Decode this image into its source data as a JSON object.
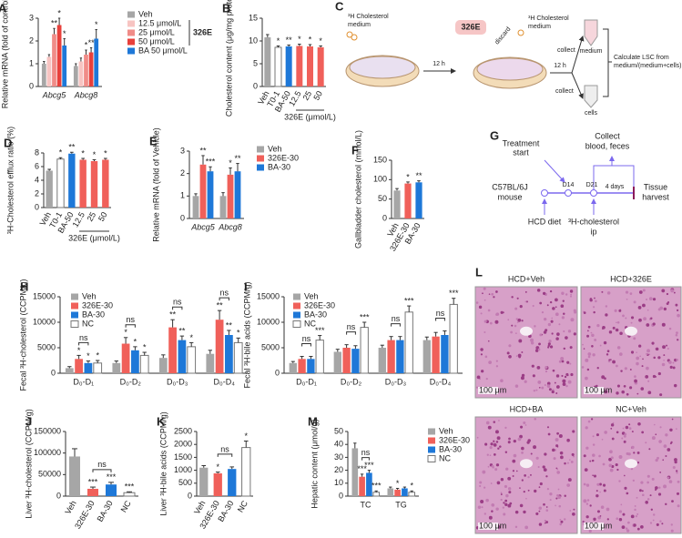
{
  "chart_data": [
    {
      "type": "bar",
      "panel": "A",
      "ylabel": "Relative mRNA (fold of control)",
      "categories": [
        "Abcg5",
        "Abcg8"
      ],
      "italic_categories": true,
      "ylim": [
        0,
        3
      ],
      "yticks": [
        0,
        1,
        2,
        3
      ],
      "legend_bracket_label": "326E",
      "series": [
        {
          "name": "Veh",
          "color": "#a6a6a6",
          "values": [
            1.0,
            0.9
          ],
          "errors": [
            0.1,
            0.1
          ],
          "significance": [
            null,
            null
          ]
        },
        {
          "name": "12.5 μmol/L",
          "color": "#f7c4c2",
          "values": [
            1.3,
            1.1
          ],
          "errors": [
            0.1,
            0.15
          ],
          "significance": [
            null,
            null
          ]
        },
        {
          "name": "25 μmol/L",
          "color": "#f08c88",
          "values": [
            2.3,
            1.4
          ],
          "errors": [
            0.25,
            0.2
          ],
          "significance": [
            "**",
            "*"
          ]
        },
        {
          "name": "50 μmol/L",
          "color": "#e8403b",
          "values": [
            2.7,
            1.5
          ],
          "errors": [
            0.3,
            0.2
          ],
          "significance": [
            "*",
            "**"
          ]
        },
        {
          "name": "BA 50 μmol/L",
          "color": "#1e78d8",
          "values": [
            1.8,
            2.1
          ],
          "errors": [
            0.3,
            0.4
          ],
          "significance": [
            "*",
            "*"
          ]
        }
      ]
    },
    {
      "type": "simple_bar",
      "panel": "B",
      "ylabel": "Cholesterol content (μg/mg protein)",
      "categories": [
        "Veh",
        "T0-1",
        "BA-50",
        "12.5",
        "25",
        "50"
      ],
      "x_group_label": "326E (μmol/L)",
      "ylim": [
        0,
        15
      ],
      "yticks": [
        0,
        5,
        10,
        15
      ],
      "colors": [
        "#a6a6a6",
        "#ffffff",
        "#1e78d8",
        "#f0605a",
        "#f0605a",
        "#f0605a"
      ],
      "values": [
        10.8,
        8.6,
        8.8,
        8.9,
        8.8,
        8.6
      ],
      "errors": [
        0.6,
        0.3,
        0.3,
        0.4,
        0.4,
        0.3
      ],
      "significance": [
        null,
        "*",
        "**",
        "*",
        "*",
        "*"
      ]
    },
    {
      "type": "simple_bar",
      "panel": "D",
      "ylabel": "³H-Cholesterol efflux ratio (%)",
      "categories": [
        "Veh",
        "T0-1",
        "BA-50",
        "12.5",
        "25",
        "50"
      ],
      "x_group_label": "326E (μmol/L)",
      "ylim": [
        0,
        8
      ],
      "yticks": [
        0,
        2,
        4,
        6,
        8
      ],
      "colors": [
        "#a6a6a6",
        "#ffffff",
        "#1e78d8",
        "#f0605a",
        "#f0605a",
        "#f0605a"
      ],
      "values": [
        5.4,
        7.1,
        7.9,
        7.0,
        6.8,
        7.0
      ],
      "errors": [
        0.2,
        0.2,
        0.2,
        0.2,
        0.2,
        0.2
      ],
      "significance": [
        null,
        "*",
        "**",
        "*",
        "*",
        "*"
      ]
    },
    {
      "type": "bar",
      "panel": "E",
      "ylabel": "Relative mRNA (fold of Vehicle)",
      "categories": [
        "Abcg5",
        "Abcg8"
      ],
      "italic_categories": true,
      "ylim": [
        0,
        3
      ],
      "yticks": [
        0,
        1,
        2,
        3
      ],
      "series": [
        {
          "name": "Veh",
          "color": "#a6a6a6",
          "values": [
            1.0,
            1.0
          ],
          "errors": [
            0.1,
            0.15
          ],
          "significance": [
            null,
            null
          ]
        },
        {
          "name": "326E-30",
          "color": "#f0605a",
          "values": [
            2.4,
            1.95
          ],
          "errors": [
            0.4,
            0.3
          ],
          "significance": [
            "**",
            "*"
          ]
        },
        {
          "name": "BA-30",
          "color": "#1e78d8",
          "values": [
            2.1,
            2.1
          ],
          "errors": [
            0.2,
            0.35
          ],
          "significance": [
            "***",
            "**"
          ]
        }
      ]
    },
    {
      "type": "simple_bar",
      "panel": "F",
      "ylabel": "Gallbladder cholesterol (mmol/L)",
      "categories": [
        "Veh",
        "326E-30",
        "BA-30"
      ],
      "ylim": [
        0,
        150
      ],
      "yticks": [
        0,
        50,
        100,
        150
      ],
      "colors": [
        "#a6a6a6",
        "#f0605a",
        "#1e78d8"
      ],
      "values": [
        72,
        90,
        93
      ],
      "errors": [
        5,
        4,
        4
      ],
      "significance": [
        null,
        "*",
        "**"
      ]
    },
    {
      "type": "bar",
      "panel": "H",
      "ylabel": "Fecal ³H-cholesterol (CCPM/g)",
      "categories": [
        "D₀-D₁",
        "D₀-D₂",
        "D₀-D₃",
        "D₀-D₄"
      ],
      "ylim": [
        0,
        15000
      ],
      "yticks": [
        0,
        5000,
        10000,
        15000
      ],
      "bracket_labels": [
        "ns",
        "ns",
        "ns",
        "ns"
      ],
      "series": [
        {
          "name": "Veh",
          "color": "#a6a6a6",
          "values": [
            1000,
            2000,
            3000,
            3800
          ],
          "errors": [
            300,
            400,
            600,
            700
          ],
          "significance": [
            null,
            null,
            null,
            null
          ]
        },
        {
          "name": "326E-30",
          "color": "#f0605a",
          "values": [
            2800,
            5800,
            9000,
            10500
          ],
          "errors": [
            700,
            1200,
            1500,
            1800
          ],
          "significance": [
            "*",
            "*",
            "**",
            "**"
          ]
        },
        {
          "name": "BA-30",
          "color": "#1e78d8",
          "values": [
            2000,
            4500,
            6500,
            7500
          ],
          "errors": [
            400,
            700,
            800,
            900
          ],
          "significance": [
            "*",
            "*",
            "**",
            "**"
          ]
        },
        {
          "name": "NC",
          "color": "#ffffff",
          "values": [
            2000,
            3500,
            5200,
            6000
          ],
          "errors": [
            500,
            600,
            800,
            900
          ],
          "significance": [
            "*",
            "*",
            "*",
            "*"
          ]
        }
      ]
    },
    {
      "type": "bar",
      "panel": "I",
      "ylabel": "Fecal ³H-bile acids (CCPM/g)",
      "categories": [
        "D₀-D₁",
        "D₀-D₂",
        "D₀-D₃",
        "D₀-D₄"
      ],
      "ylim": [
        0,
        15000
      ],
      "yticks": [
        0,
        5000,
        10000,
        15000
      ],
      "bracket_labels": [
        "ns",
        "ns",
        "ns",
        "ns"
      ],
      "series": [
        {
          "name": "Veh",
          "color": "#a6a6a6",
          "values": [
            2000,
            4200,
            5000,
            6500
          ],
          "errors": [
            300,
            500,
            500,
            600
          ],
          "significance": [
            null,
            null,
            null,
            null
          ]
        },
        {
          "name": "326E-30",
          "color": "#f0605a",
          "values": [
            2800,
            5000,
            6500,
            7200
          ],
          "errors": [
            500,
            600,
            700,
            800
          ],
          "significance": [
            null,
            null,
            null,
            null
          ]
        },
        {
          "name": "BA-30",
          "color": "#1e78d8",
          "values": [
            2800,
            4800,
            6500,
            7500
          ],
          "errors": [
            500,
            600,
            700,
            800
          ],
          "significance": [
            null,
            null,
            null,
            null
          ]
        },
        {
          "name": "NC",
          "color": "#ffffff",
          "values": [
            6500,
            9000,
            12000,
            13500
          ],
          "errors": [
            900,
            1000,
            1200,
            1200
          ],
          "significance": [
            "***",
            "***",
            "***",
            "***"
          ]
        }
      ]
    },
    {
      "type": "simple_bar",
      "panel": "J",
      "ylabel": "Liver ³H-cholesterol (CCPM/g)",
      "categories": [
        "Veh",
        "326E-30",
        "BA-30",
        "NC"
      ],
      "ylim": [
        0,
        150000
      ],
      "yticks": [
        0,
        50000,
        100000,
        150000
      ],
      "bracket_label": "ns",
      "colors": [
        "#a6a6a6",
        "#f0605a",
        "#1e78d8",
        "#ffffff"
      ],
      "values": [
        92000,
        17000,
        27000,
        8000
      ],
      "errors": [
        18000,
        4000,
        5000,
        2000
      ],
      "significance": [
        null,
        "***",
        "***",
        "***"
      ]
    },
    {
      "type": "simple_bar",
      "panel": "K",
      "ylabel": "Liver ³H-bile acids (CCPM/g)",
      "categories": [
        "Veh",
        "326E-30",
        "BA-30",
        "NC"
      ],
      "ylim": [
        0,
        2500
      ],
      "yticks": [
        0,
        500,
        1000,
        1500,
        2000,
        2500
      ],
      "bracket_label": "ns",
      "colors": [
        "#a6a6a6",
        "#f0605a",
        "#1e78d8",
        "#ffffff"
      ],
      "values": [
        1100,
        880,
        1050,
        1880
      ],
      "errors": [
        80,
        50,
        80,
        250
      ],
      "significance": [
        null,
        "*",
        null,
        "*"
      ]
    },
    {
      "type": "bar",
      "panel": "M",
      "ylabel": "Hepatic content (μmol/g)",
      "categories": [
        "TC",
        "TG"
      ],
      "ylim": [
        0,
        50
      ],
      "yticks": [
        0,
        10,
        20,
        30,
        40,
        50
      ],
      "bracket_labels": [
        "ns",
        null
      ],
      "series": [
        {
          "name": "Veh",
          "color": "#a6a6a6",
          "values": [
            37,
            6
          ],
          "errors": [
            4,
            1
          ],
          "significance": [
            null,
            null
          ]
        },
        {
          "name": "326E-30",
          "color": "#f0605a",
          "values": [
            15,
            5
          ],
          "errors": [
            2,
            1
          ],
          "significance": [
            "***",
            "*"
          ]
        },
        {
          "name": "BA-30",
          "color": "#1e78d8",
          "values": [
            18,
            6
          ],
          "errors": [
            2,
            1
          ],
          "significance": [
            "***",
            null
          ]
        },
        {
          "name": "NC",
          "color": "#ffffff",
          "values": [
            3,
            3
          ],
          "errors": [
            1,
            1
          ],
          "significance": [
            "***",
            "*"
          ]
        }
      ]
    }
  ],
  "diagram_c": {
    "panel": "C",
    "start_medium": [
      "³H Cholesterol",
      "medium"
    ],
    "compound": "326E",
    "discard": "discard",
    "second_medium": [
      "³H Cholesterol",
      "medium"
    ],
    "time_1": "12 h",
    "time_2": "12 h",
    "collect_1": "collect",
    "collect_2": "collect",
    "tube_1": "medium",
    "tube_2": "cells",
    "calculation": [
      "Calculate LSC from",
      "medium/(medium+cells)"
    ]
  },
  "diagram_g": {
    "panel": "G",
    "treatment": [
      "Treatment",
      "start"
    ],
    "collect": [
      "Collect",
      "blood, feces"
    ],
    "mouse": [
      "C57BL/6J",
      "mouse"
    ],
    "day_1": "D14",
    "day_2": "D21",
    "duration": "4 days",
    "harvest": [
      "Tissue",
      "harvest"
    ],
    "diet": "HCD diet",
    "tracer": [
      "³H-cholesterol",
      "ip"
    ]
  },
  "panel_l": {
    "panel": "L",
    "images": [
      "HCD+Veh",
      "HCD+326E",
      "HCD+BA",
      "NC+Veh"
    ],
    "scale_bar": "100 μm"
  }
}
